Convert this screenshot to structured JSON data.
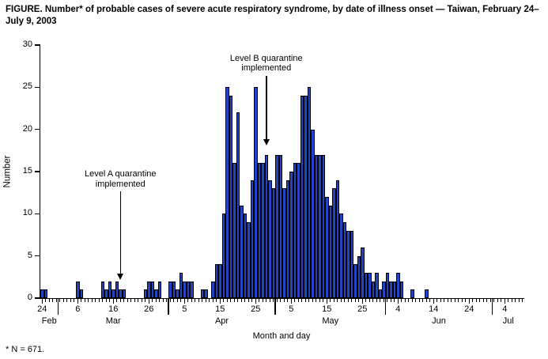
{
  "figure": {
    "footnote": "* N = 671."
  },
  "chart_data": {
    "type": "bar",
    "title": "FIGURE. Number* of probable cases of severe acute respiratory syndrome, by date of illness onset — Taiwan, February 24–July 9, 2003",
    "xlabel": "Month and day",
    "ylabel": "Number",
    "ylim": [
      0,
      30
    ],
    "y_ticks": [
      0,
      5,
      10,
      15,
      20,
      25,
      30
    ],
    "grid": false,
    "legend": false,
    "total_n": 671,
    "start_date": "Feb 24",
    "end_date": "Jul 9",
    "colors": {
      "bar_fill": "#2143c4",
      "bar_border": "#000000",
      "axis": "#000000"
    },
    "months": [
      {
        "label": "Feb",
        "first_day_index": 0
      },
      {
        "label": "Mar",
        "first_day_index": 5
      },
      {
        "label": "Apr",
        "first_day_index": 36
      },
      {
        "label": "May",
        "first_day_index": 66
      },
      {
        "label": "Jun",
        "first_day_index": 97
      },
      {
        "label": "Jul",
        "first_day_index": 127
      }
    ],
    "x_ticks": [
      {
        "label": "24",
        "date": "Feb 24"
      },
      {
        "label": "6",
        "date": "Mar 6"
      },
      {
        "label": "16",
        "date": "Mar 16"
      },
      {
        "label": "26",
        "date": "Mar 26"
      },
      {
        "label": "5",
        "date": "Apr 5"
      },
      {
        "label": "15",
        "date": "Apr 15"
      },
      {
        "label": "25",
        "date": "Apr 25"
      },
      {
        "label": "5",
        "date": "May 5"
      },
      {
        "label": "15",
        "date": "May 15"
      },
      {
        "label": "25",
        "date": "May 25"
      },
      {
        "label": "4",
        "date": "Jun 4"
      },
      {
        "label": "14",
        "date": "Jun 14"
      },
      {
        "label": "24",
        "date": "Jun 24"
      },
      {
        "label": "4",
        "date": "Jul 4"
      }
    ],
    "values": [
      1,
      1,
      0,
      0,
      0,
      0,
      0,
      0,
      0,
      0,
      2,
      1,
      0,
      0,
      0,
      0,
      0,
      2,
      1,
      2,
      1,
      2,
      1,
      1,
      0,
      0,
      0,
      0,
      0,
      1,
      2,
      2,
      1,
      2,
      0,
      0,
      2,
      2,
      1,
      3,
      2,
      2,
      2,
      0,
      0,
      1,
      1,
      0,
      2,
      4,
      4,
      10,
      25,
      24,
      16,
      22,
      11,
      10,
      9,
      14,
      25,
      16,
      16,
      17,
      14,
      13,
      17,
      17,
      13,
      14,
      15,
      16,
      16,
      24,
      24,
      25,
      20,
      17,
      17,
      17,
      12,
      11,
      13,
      14,
      10,
      9,
      8,
      8,
      4,
      5,
      6,
      3,
      3,
      2,
      3,
      1,
      2,
      3,
      2,
      2,
      3,
      2,
      0,
      0,
      1,
      0,
      0,
      0,
      1,
      0,
      0,
      0,
      0,
      0,
      0,
      0,
      0,
      0,
      0,
      0,
      0,
      0,
      0,
      0,
      0,
      0,
      0,
      0,
      0,
      0,
      0,
      0,
      0,
      0,
      0,
      0
    ],
    "annotations": [
      {
        "lines": [
          "Level A quarantine",
          "implemented"
        ],
        "date": "Mar 18"
      },
      {
        "lines": [
          "Level B quarantine",
          "implemented"
        ],
        "date": "Apr 28"
      }
    ]
  }
}
